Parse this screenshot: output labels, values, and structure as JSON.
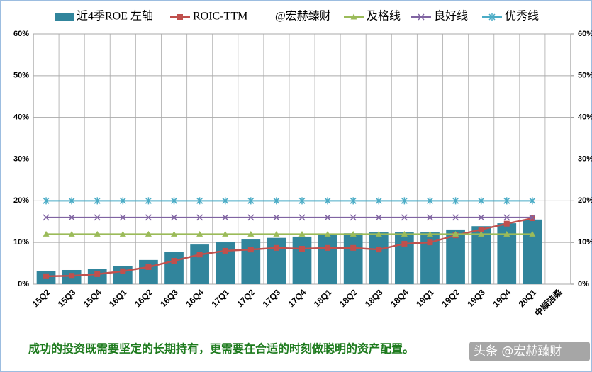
{
  "chart_data": {
    "type": "bar",
    "annotation": "@宏赫臻财",
    "footer": "成功的投资既需要坚定的长期持有，更需要在合适的时刻做聪明的资产配置。",
    "watermark": "头条 @宏赫臻财",
    "categories": [
      "15Q2",
      "15Q3",
      "15Q4",
      "16Q1",
      "16Q2",
      "16Q3",
      "16Q4",
      "17Q1",
      "17Q2",
      "17Q3",
      "17Q4",
      "18Q1",
      "18Q2",
      "18Q3",
      "18Q4",
      "19Q1",
      "19Q2",
      "19Q3",
      "19Q4",
      "20Q1",
      "中顺洁柔"
    ],
    "series": [
      {
        "name": "近4季ROE 左轴",
        "type": "bar",
        "color": "#31859c",
        "values": [
          3.1,
          3.4,
          3.7,
          4.4,
          5.8,
          7.7,
          9.5,
          10.2,
          10.7,
          11.1,
          11.4,
          11.9,
          12.2,
          12.4,
          12.4,
          12.4,
          13.1,
          13.9,
          14.6,
          15.5,
          null
        ]
      },
      {
        "name": "ROIC-TTM",
        "type": "line",
        "marker": "square",
        "color": "#c0504d",
        "values": [
          1.9,
          2.0,
          2.4,
          3.1,
          4.1,
          5.6,
          7.1,
          8.0,
          8.3,
          8.7,
          8.5,
          8.7,
          8.7,
          8.3,
          9.7,
          10.0,
          11.7,
          13.1,
          14.5,
          15.8,
          null
        ]
      },
      {
        "name": "及格线",
        "type": "line",
        "marker": "triangle",
        "color": "#9bbb59",
        "values": [
          12,
          12,
          12,
          12,
          12,
          12,
          12,
          12,
          12,
          12,
          12,
          12,
          12,
          12,
          12,
          12,
          12,
          12,
          12,
          12,
          null
        ]
      },
      {
        "name": "良好线",
        "type": "line",
        "marker": "x",
        "color": "#8064a2",
        "values": [
          16,
          16,
          16,
          16,
          16,
          16,
          16,
          16,
          16,
          16,
          16,
          16,
          16,
          16,
          16,
          16,
          16,
          16,
          16,
          16,
          null
        ]
      },
      {
        "name": "优秀线",
        "type": "line",
        "marker": "star",
        "color": "#4bacc6",
        "values": [
          20,
          20,
          20,
          20,
          20,
          20,
          20,
          20,
          20,
          20,
          20,
          20,
          20,
          20,
          20,
          20,
          20,
          20,
          20,
          20,
          null
        ]
      }
    ],
    "ylim": [
      0,
      60
    ],
    "yticks": [
      {
        "value": 0,
        "label": "0%"
      },
      {
        "value": 10,
        "label": "10%"
      },
      {
        "value": 20,
        "label": "20%"
      },
      {
        "value": 30,
        "label": "30%"
      },
      {
        "value": 40,
        "label": "40%"
      },
      {
        "value": 50,
        "label": "50%"
      },
      {
        "value": 60,
        "label": "60%"
      }
    ],
    "y2lim": [
      0,
      60
    ],
    "y2ticks": [
      {
        "value": 0,
        "label": "0%"
      },
      {
        "value": 10,
        "label": "10%"
      },
      {
        "value": 20,
        "label": "20%"
      },
      {
        "value": 30,
        "label": "30%"
      },
      {
        "value": 40,
        "label": "40%"
      },
      {
        "value": 50,
        "label": "50%"
      },
      {
        "value": 60,
        "label": "60%"
      }
    ],
    "grid": true,
    "legend": "top"
  }
}
